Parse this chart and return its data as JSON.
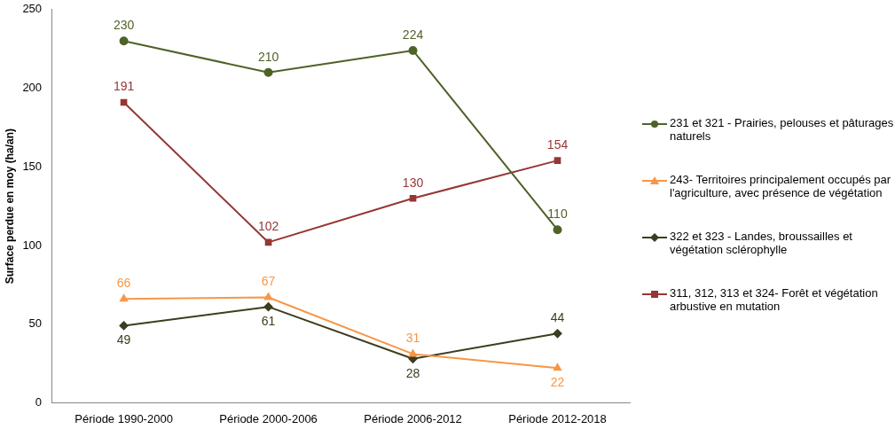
{
  "chart_data": {
    "type": "line",
    "ylabel": "Surface perdue en moy (ha/an)",
    "categories": [
      "Période 1990-2000",
      "Période 2000-2006",
      "Période 2006-2012",
      "Période 2012-2018"
    ],
    "series": [
      {
        "name": "231 et 321 - Prairies, pelouses et pâturages naturels",
        "color": "#4f6228",
        "marker": "circle",
        "values": [
          230,
          210,
          224,
          110
        ]
      },
      {
        "name": "243- Territoires principalement occupés par l'agriculture, avec présence de végétation",
        "color": "#f79646",
        "marker": "triangle",
        "values": [
          66,
          67,
          31,
          22
        ]
      },
      {
        "name": "322 et 323 - Landes, broussailles et végétation sclérophylle",
        "color": "#3d3d1f",
        "marker": "diamond",
        "values": [
          49,
          61,
          28,
          44
        ]
      },
      {
        "name": "311, 312, 313 et 324- Forêt et végétation arbustive en mutation",
        "color": "#953735",
        "marker": "square",
        "values": [
          191,
          102,
          130,
          154
        ]
      }
    ],
    "ylim": [
      0,
      250
    ],
    "yticks": [
      0,
      50,
      100,
      150,
      200,
      250
    ],
    "grid": false,
    "legend": "right",
    "data_labels": true
  }
}
